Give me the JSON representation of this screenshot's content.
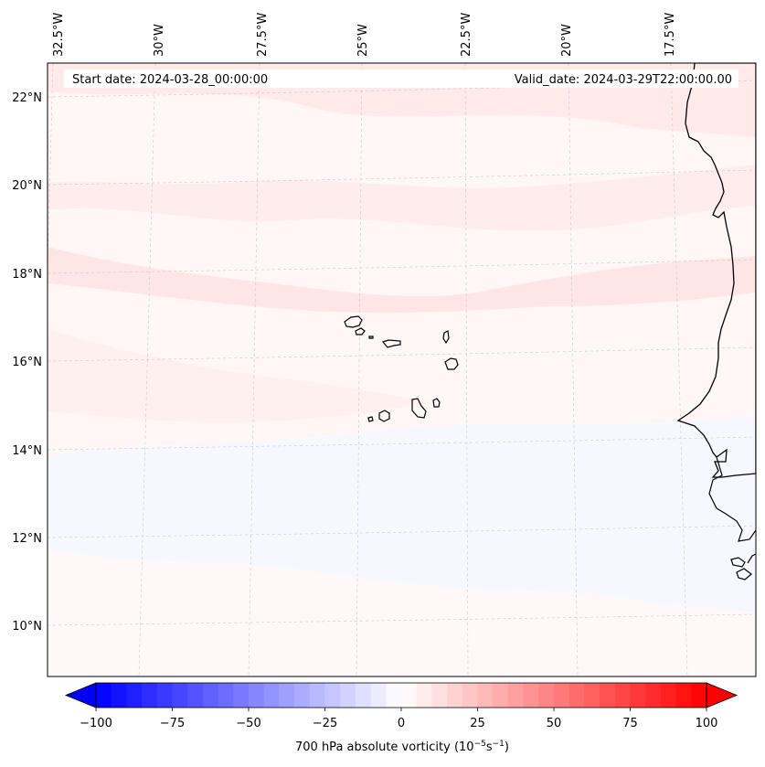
{
  "header": {
    "start_date": "Start date: 2024-03-28_00:00:00",
    "valid_date": "Valid_date: 2024-03-29T22:00:00.00"
  },
  "longitude_labels": [
    "32.5°W",
    "30°W",
    "27.5°W",
    "25°W",
    "22.5°W",
    "20°W",
    "17.5°W"
  ],
  "latitude_labels": [
    "22°N",
    "20°N",
    "18°N",
    "16°N",
    "14°N",
    "12°N",
    "10°N"
  ],
  "colorbar": {
    "title": "700 hPa absolute vorticity (10",
    "unit_exp": "−5",
    "unit_tail": "s",
    "unit_exp2": "−1",
    "unit_close": ")",
    "min": -100,
    "max": 100,
    "step": 5,
    "ticks": [
      "−100",
      "−75",
      "−50",
      "−25",
      "0",
      "25",
      "50",
      "75",
      "100"
    ],
    "neg_color": "#0000ff",
    "mid_color": "#ffffff",
    "pos_color": "#ff0000"
  },
  "colors": {
    "background_field": "#fff5f5",
    "pink_band": "#ffe6e6",
    "blue_band": "#f6f8ff",
    "coastline": "#000000",
    "gridline": "#cccccc"
  }
}
